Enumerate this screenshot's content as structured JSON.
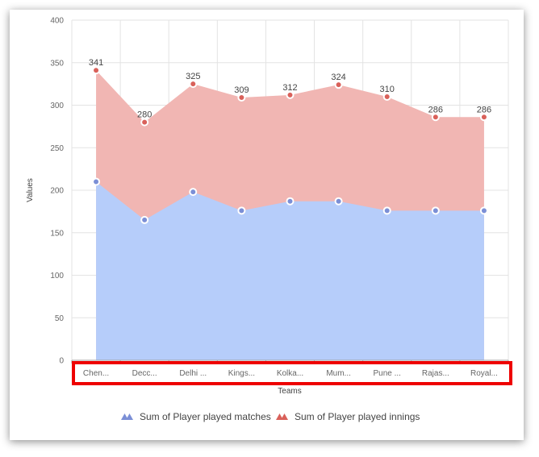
{
  "chart_data": {
    "type": "area",
    "categories": [
      "Chen...",
      "Decc...",
      "Delhi ...",
      "Kings...",
      "Kolka...",
      "Mum...",
      "Pune ...",
      "Rajas...",
      "Royal..."
    ],
    "series": [
      {
        "name": "Sum of Player played matches",
        "values": [
          210,
          165,
          198,
          176,
          187,
          187,
          176,
          176,
          176
        ],
        "color": "#b6cdfa",
        "marker_color": "#7b8fd6"
      },
      {
        "name": "Sum of Player played innings",
        "values": [
          341,
          280,
          325,
          309,
          312,
          324,
          310,
          286,
          286
        ],
        "color": "#f1b6b3",
        "marker_color": "#d9615a"
      }
    ],
    "data_labels": [
      "341",
      "280",
      "325",
      "309",
      "312",
      "324",
      "310",
      "286",
      "286"
    ],
    "xlabel": "Teams",
    "ylabel": "Values",
    "ylim": [
      0,
      400
    ],
    "yticks": [
      "0",
      "50",
      "100",
      "150",
      "200",
      "250",
      "300",
      "350",
      "400"
    ],
    "grid": true,
    "legend": "bottom",
    "highlight_color": "#ee0000"
  }
}
